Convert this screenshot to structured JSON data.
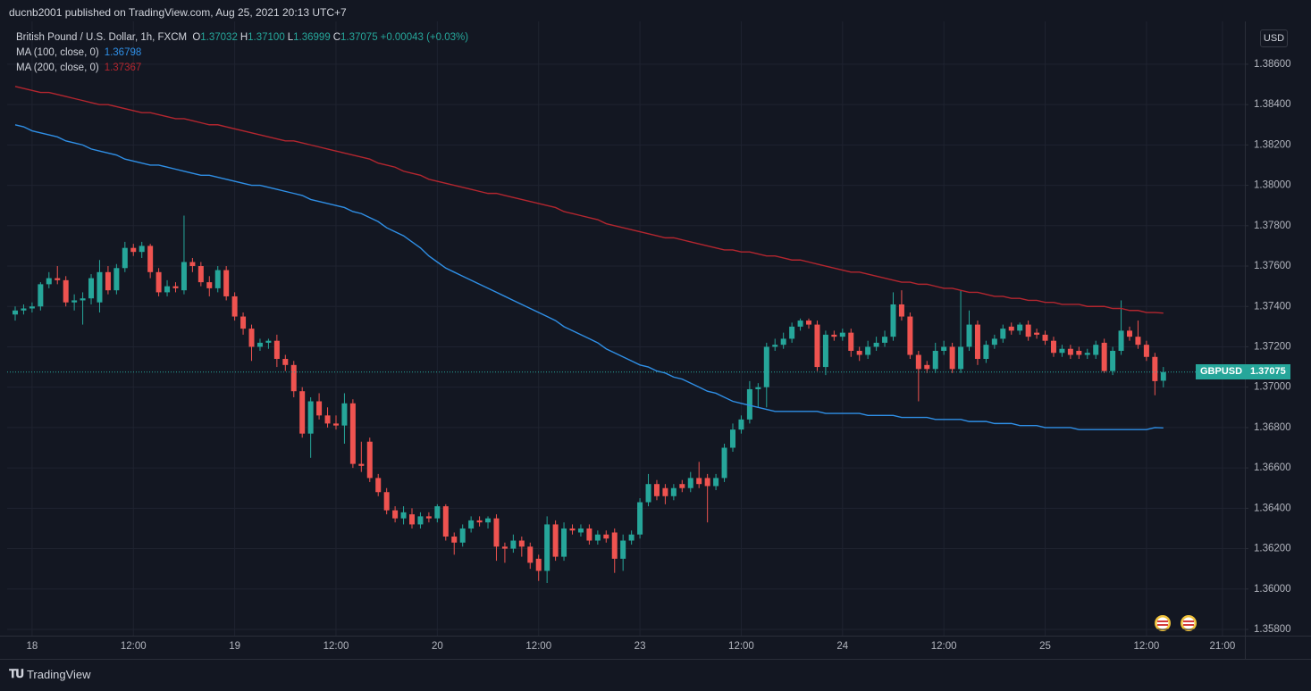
{
  "header": {
    "text": "ducnb2001 published on TradingView.com, Aug 25, 2021 20:13 UTC+7"
  },
  "footer": {
    "brand": "TradingView"
  },
  "chart_data": {
    "type": "candlestick",
    "title": "British Pound / U.S. Dollar, 1h, FXCM",
    "legend_values": [
      {
        "label": "O",
        "value": "1.37032"
      },
      {
        "label": "H",
        "value": "1.37100"
      },
      {
        "label": "L",
        "value": "1.36999"
      },
      {
        "label": "C",
        "value": "1.37075"
      }
    ],
    "change": "+0.00043 (+0.03%)",
    "currency": "USD",
    "symbol": "GBPUSD",
    "last_price_label": "1.37075",
    "up_color": "#26a69a",
    "down_color": "#ef5350",
    "grid": true,
    "categories": [
      null,
      null,
      "18",
      null,
      null,
      null,
      null,
      null,
      null,
      null,
      null,
      null,
      null,
      null,
      "12:00",
      null,
      null,
      null,
      null,
      null,
      null,
      null,
      null,
      null,
      null,
      null,
      "19",
      null,
      null,
      null,
      null,
      null,
      null,
      null,
      null,
      null,
      null,
      null,
      "12:00",
      null,
      null,
      null,
      null,
      null,
      null,
      null,
      null,
      null,
      null,
      null,
      "20",
      null,
      null,
      null,
      null,
      null,
      null,
      null,
      null,
      null,
      null,
      null,
      "12:00",
      null,
      null,
      null,
      null,
      null,
      null,
      null,
      null,
      null,
      null,
      null,
      "23",
      null,
      null,
      null,
      null,
      null,
      null,
      null,
      null,
      null,
      null,
      null,
      "12:00",
      null,
      null,
      null,
      null,
      null,
      null,
      null,
      null,
      null,
      null,
      null,
      "24",
      null,
      null,
      null,
      null,
      null,
      null,
      null,
      null,
      null,
      null,
      null,
      "12:00",
      null,
      null,
      null,
      null,
      null,
      null,
      null,
      null,
      null,
      null,
      null,
      "25",
      null,
      null,
      null,
      null,
      null,
      null,
      null,
      null,
      null,
      null,
      null,
      "12:00",
      null,
      null,
      null,
      null,
      null,
      null,
      null,
      null,
      "21:00"
    ],
    "open": [
      1.3736,
      1.3738,
      1.3739,
      1.374,
      1.3751,
      1.3754,
      1.3753,
      1.3742,
      1.3743,
      1.3744,
      1.3742,
      1.3757,
      1.3748,
      1.3759,
      1.3769,
      1.3767,
      1.377,
      1.3757,
      1.3747,
      1.375,
      1.3748,
      1.3762,
      1.376,
      1.3752,
      1.3749,
      1.3758,
      1.3745,
      1.3735,
      1.3729,
      1.372,
      1.3722,
      1.3723,
      1.3714,
      1.3711,
      1.3698,
      1.3677,
      1.3693,
      1.3686,
      1.3682,
      1.3681,
      1.3692,
      1.3662,
      1.3673,
      1.3655,
      1.3648,
      1.3639,
      1.3635,
      1.3637,
      1.3632,
      1.3636,
      1.3635,
      1.3641,
      1.3626,
      1.3623,
      1.363,
      1.3634,
      1.3633,
      1.3635,
      1.3621,
      1.362,
      1.3624,
      1.3621,
      1.3615,
      1.3609,
      1.3632,
      1.3616,
      1.363,
      1.3628,
      1.363,
      1.3624,
      1.3627,
      1.3628,
      1.3615,
      1.3624,
      1.3627,
      1.3643,
      1.3652,
      1.365,
      1.3646,
      1.3652,
      1.365,
      1.3655,
      1.3655,
      1.3651,
      1.3655,
      1.367,
      1.3679,
      1.3684,
      1.3699,
      1.37,
      1.372,
      1.3721,
      1.3724,
      1.373,
      1.3733,
      1.3731,
      1.371,
      1.3726,
      1.3725,
      1.3727,
      1.3718,
      1.3716,
      1.372,
      1.3722,
      1.3725,
      1.3741,
      1.3735,
      1.3716,
      1.3711,
      1.3709,
      1.3718,
      1.372,
      1.3709,
      1.372,
      1.3731,
      1.3714,
      1.3721,
      1.3724,
      1.373,
      1.3728,
      1.3731,
      1.3727,
      1.3726,
      1.3723,
      1.3717,
      1.3719,
      1.3718,
      1.3716,
      1.3716,
      1.3722,
      1.3708,
      1.3718,
      1.3728,
      1.3725,
      1.3721,
      1.3715,
      1.37032,
      null,
      null,
      null,
      null,
      null,
      null,
      null
    ],
    "high": [
      1.374,
      1.3741,
      1.3742,
      1.3752,
      1.3757,
      1.376,
      1.3755,
      1.3746,
      1.3747,
      1.3756,
      1.3763,
      1.376,
      1.3761,
      1.3772,
      1.3771,
      1.3772,
      1.3771,
      1.3759,
      1.3753,
      1.3752,
      1.3785,
      1.3764,
      1.3762,
      1.3755,
      1.376,
      1.376,
      1.3747,
      1.3737,
      1.3731,
      1.3724,
      1.3724,
      1.3726,
      1.3716,
      1.3713,
      1.37,
      1.3695,
      1.3697,
      1.369,
      1.3686,
      1.3697,
      1.3694,
      1.3673,
      1.3675,
      1.3657,
      1.365,
      1.3641,
      1.3641,
      1.364,
      1.3638,
      1.3638,
      1.3642,
      1.3642,
      1.3628,
      1.3632,
      1.3636,
      1.3636,
      1.3636,
      1.3637,
      1.3623,
      1.3627,
      1.3626,
      1.3623,
      1.3617,
      1.3636,
      1.3634,
      1.3633,
      1.3632,
      1.3632,
      1.3632,
      1.3629,
      1.3629,
      1.363,
      1.3627,
      1.3629,
      1.3645,
      1.3657,
      1.3654,
      1.3652,
      1.3652,
      1.3654,
      1.3658,
      1.3663,
      1.3657,
      1.3657,
      1.3672,
      1.3682,
      1.3686,
      1.3703,
      1.3702,
      1.3722,
      1.3724,
      1.3727,
      1.3732,
      1.3734,
      1.3734,
      1.3733,
      1.3728,
      1.3728,
      1.3729,
      1.3729,
      1.372,
      1.3723,
      1.3725,
      1.3728,
      1.3747,
      1.3748,
      1.3737,
      1.3718,
      1.3713,
      1.3722,
      1.3723,
      1.3722,
      1.3748,
      1.3738,
      1.3733,
      1.3723,
      1.3726,
      1.3731,
      1.3732,
      1.3732,
      1.3733,
      1.3729,
      1.3728,
      1.3725,
      1.3721,
      1.3721,
      1.372,
      1.3719,
      1.3723,
      1.3724,
      1.372,
      1.3743,
      1.373,
      1.3733,
      1.3723,
      1.3717,
      1.371,
      null,
      null,
      null,
      null,
      null,
      null,
      null
    ],
    "low": [
      1.3733,
      1.3736,
      1.3737,
      1.3738,
      1.3749,
      1.3751,
      1.374,
      1.3738,
      1.3731,
      1.3741,
      1.3737,
      1.3746,
      1.3746,
      1.3757,
      1.3765,
      1.3764,
      1.3754,
      1.3745,
      1.3745,
      1.3747,
      1.3746,
      1.3757,
      1.375,
      1.3745,
      1.3747,
      1.3743,
      1.3733,
      1.3726,
      1.3713,
      1.3718,
      1.3719,
      1.371,
      1.3708,
      1.3695,
      1.3675,
      1.3665,
      1.3684,
      1.368,
      1.3679,
      1.3672,
      1.366,
      1.3658,
      1.3653,
      1.3646,
      1.3637,
      1.3633,
      1.3632,
      1.363,
      1.363,
      1.3633,
      1.3633,
      1.3624,
      1.3617,
      1.3621,
      1.3628,
      1.3631,
      1.363,
      1.3614,
      1.3613,
      1.3618,
      1.3616,
      1.361,
      1.3604,
      1.3603,
      1.3614,
      1.3614,
      1.3627,
      1.3626,
      1.3622,
      1.3622,
      1.3623,
      1.3608,
      1.3609,
      1.3622,
      1.3625,
      1.3641,
      1.3644,
      1.3642,
      1.3644,
      1.3648,
      1.3648,
      1.365,
      1.3633,
      1.3649,
      1.3653,
      1.3668,
      1.3677,
      1.3682,
      1.369,
      1.369,
      1.3718,
      1.3719,
      1.3722,
      1.3728,
      1.3729,
      1.3708,
      1.3706,
      1.3723,
      1.3723,
      1.3715,
      1.3713,
      1.3714,
      1.3718,
      1.372,
      1.3723,
      1.3733,
      1.3714,
      1.3693,
      1.3707,
      1.3707,
      1.3716,
      1.3707,
      1.3707,
      1.3718,
      1.3711,
      1.3712,
      1.3719,
      1.3722,
      1.3726,
      1.3726,
      1.3723,
      1.3724,
      1.3721,
      1.3715,
      1.3715,
      1.3714,
      1.3714,
      1.3714,
      1.3714,
      1.3707,
      1.3706,
      1.3716,
      1.3723,
      1.3719,
      1.3713,
      1.3696,
      1.36999,
      null,
      null,
      null,
      null,
      null,
      null,
      null
    ],
    "close": [
      1.3738,
      1.3739,
      1.374,
      1.3751,
      1.3754,
      1.3753,
      1.3742,
      1.3743,
      1.3744,
      1.3754,
      1.3757,
      1.3748,
      1.3759,
      1.3769,
      1.3767,
      1.377,
      1.3757,
      1.3747,
      1.375,
      1.3749,
      1.3762,
      1.376,
      1.3752,
      1.3749,
      1.3758,
      1.3745,
      1.3735,
      1.3729,
      1.372,
      1.3722,
      1.3723,
      1.3714,
      1.3711,
      1.3698,
      1.3677,
      1.3693,
      1.3686,
      1.3682,
      1.3681,
      1.3692,
      1.3662,
      1.3661,
      1.3655,
      1.3648,
      1.3639,
      1.3635,
      1.3638,
      1.3632,
      1.3636,
      1.3635,
      1.3641,
      1.3626,
      1.3623,
      1.363,
      1.3634,
      1.3633,
      1.3635,
      1.3621,
      1.362,
      1.3624,
      1.3621,
      1.3613,
      1.3609,
      1.3632,
      1.3616,
      1.363,
      1.3629,
      1.363,
      1.3624,
      1.3627,
      1.3625,
      1.3615,
      1.3624,
      1.3627,
      1.3643,
      1.3652,
      1.3646,
      1.3646,
      1.365,
      1.365,
      1.3655,
      1.3652,
      1.3651,
      1.3655,
      1.367,
      1.3679,
      1.3684,
      1.3699,
      1.37,
      1.372,
      1.3721,
      1.3724,
      1.373,
      1.3733,
      1.3731,
      1.371,
      1.3726,
      1.3725,
      1.3727,
      1.3718,
      1.3716,
      1.372,
      1.3722,
      1.3725,
      1.3741,
      1.3735,
      1.3716,
      1.3709,
      1.3709,
      1.3718,
      1.372,
      1.3709,
      1.372,
      1.3731,
      1.3714,
      1.3721,
      1.3724,
      1.3729,
      1.3728,
      1.3731,
      1.3725,
      1.3726,
      1.3723,
      1.3717,
      1.3719,
      1.3716,
      1.3716,
      1.3717,
      1.3721,
      1.3708,
      1.3718,
      1.3728,
      1.3725,
      1.3721,
      1.3715,
      1.3703,
      1.37075,
      null,
      null,
      null,
      null,
      null,
      null,
      null
    ],
    "indicators": [
      {
        "name": "MA (100, close, 0)",
        "color": "#2f8fe6",
        "last_label": "1.36798",
        "values": [
          1.383,
          1.3829,
          1.3827,
          1.3826,
          1.3825,
          1.3824,
          1.3822,
          1.3821,
          1.382,
          1.3818,
          1.3817,
          1.3816,
          1.3815,
          1.3813,
          1.3812,
          1.3811,
          1.381,
          1.381,
          1.3809,
          1.3808,
          1.3807,
          1.3806,
          1.3805,
          1.3805,
          1.3804,
          1.3803,
          1.3802,
          1.3801,
          1.38,
          1.38,
          1.3799,
          1.3798,
          1.3797,
          1.3796,
          1.3795,
          1.3793,
          1.3792,
          1.3791,
          1.379,
          1.3789,
          1.3787,
          1.3786,
          1.3784,
          1.3782,
          1.3779,
          1.3777,
          1.3775,
          1.3772,
          1.3769,
          1.3765,
          1.3762,
          1.3759,
          1.3757,
          1.3755,
          1.3753,
          1.3751,
          1.3749,
          1.3747,
          1.3745,
          1.3743,
          1.3741,
          1.3739,
          1.3737,
          1.3735,
          1.3733,
          1.373,
          1.3728,
          1.3726,
          1.3724,
          1.3722,
          1.3719,
          1.3717,
          1.3715,
          1.3713,
          1.3711,
          1.371,
          1.3708,
          1.3707,
          1.3705,
          1.3704,
          1.3702,
          1.37,
          1.3698,
          1.3697,
          1.3695,
          1.3693,
          1.3692,
          1.3691,
          1.369,
          1.3689,
          1.3688,
          1.3688,
          1.3688,
          1.3688,
          1.3688,
          1.3688,
          1.3687,
          1.3687,
          1.3687,
          1.3687,
          1.3687,
          1.3686,
          1.3686,
          1.3686,
          1.3686,
          1.3685,
          1.3685,
          1.3685,
          1.3685,
          1.3684,
          1.3684,
          1.3684,
          1.3684,
          1.3683,
          1.3683,
          1.3683,
          1.3682,
          1.3682,
          1.3682,
          1.3681,
          1.3681,
          1.3681,
          1.368,
          1.368,
          1.368,
          1.368,
          1.3679,
          1.3679,
          1.3679,
          1.3679,
          1.3679,
          1.3679,
          1.3679,
          1.3679,
          1.3679,
          1.368,
          1.36798,
          null,
          null,
          null,
          null,
          null,
          null,
          null
        ]
      },
      {
        "name": "MA (200, close, 0)",
        "color": "#b3262f",
        "last_label": "1.37367",
        "values": [
          1.3849,
          1.3848,
          1.3847,
          1.3846,
          1.3846,
          1.3845,
          1.3844,
          1.3843,
          1.3842,
          1.3841,
          1.384,
          1.384,
          1.3839,
          1.3838,
          1.3837,
          1.3836,
          1.3836,
          1.3835,
          1.3834,
          1.3833,
          1.3833,
          1.3832,
          1.3831,
          1.383,
          1.383,
          1.3829,
          1.3828,
          1.3827,
          1.3826,
          1.3825,
          1.3824,
          1.3823,
          1.3822,
          1.3822,
          1.3821,
          1.382,
          1.3819,
          1.3818,
          1.3817,
          1.3816,
          1.3815,
          1.3814,
          1.3813,
          1.3811,
          1.381,
          1.3809,
          1.3807,
          1.3806,
          1.3805,
          1.3803,
          1.3802,
          1.3801,
          1.38,
          1.3799,
          1.3798,
          1.3797,
          1.3796,
          1.3796,
          1.3795,
          1.3794,
          1.3793,
          1.3792,
          1.3791,
          1.379,
          1.3789,
          1.3787,
          1.3786,
          1.3785,
          1.3784,
          1.3783,
          1.3781,
          1.378,
          1.3779,
          1.3778,
          1.3777,
          1.3776,
          1.3775,
          1.3774,
          1.3774,
          1.3773,
          1.3772,
          1.3771,
          1.377,
          1.3769,
          1.3768,
          1.3768,
          1.3767,
          1.3767,
          1.3766,
          1.3765,
          1.3765,
          1.3764,
          1.3763,
          1.3763,
          1.3762,
          1.3761,
          1.376,
          1.3759,
          1.3758,
          1.3757,
          1.3757,
          1.3756,
          1.3755,
          1.3754,
          1.3753,
          1.3752,
          1.3752,
          1.3751,
          1.3751,
          1.375,
          1.3749,
          1.3749,
          1.3748,
          1.3747,
          1.3747,
          1.3746,
          1.3745,
          1.3745,
          1.3744,
          1.3744,
          1.3743,
          1.3743,
          1.3742,
          1.3742,
          1.3741,
          1.3741,
          1.3741,
          1.374,
          1.374,
          1.374,
          1.3739,
          1.3739,
          1.3738,
          1.3738,
          1.3737,
          1.3737,
          1.37367,
          null,
          null,
          null,
          null,
          null,
          null,
          null
        ]
      }
    ],
    "ylim": [
      1.35769,
      1.38812
    ],
    "yticks": [
      {
        "value": 1.386,
        "label": "1.38600"
      },
      {
        "value": 1.384,
        "label": "1.38400"
      },
      {
        "value": 1.382,
        "label": "1.38200"
      },
      {
        "value": 1.38,
        "label": "1.38000"
      },
      {
        "value": 1.378,
        "label": "1.37800"
      },
      {
        "value": 1.376,
        "label": "1.37600"
      },
      {
        "value": 1.374,
        "label": "1.37400"
      },
      {
        "value": 1.372,
        "label": "1.37200"
      },
      {
        "value": 1.37,
        "label": "1.37000"
      },
      {
        "value": 1.368,
        "label": "1.36800"
      },
      {
        "value": 1.366,
        "label": "1.36600"
      },
      {
        "value": 1.364,
        "label": "1.36400"
      },
      {
        "value": 1.362,
        "label": "1.36200"
      },
      {
        "value": 1.36,
        "label": "1.36000"
      },
      {
        "value": 1.358,
        "label": "1.35800"
      }
    ]
  }
}
